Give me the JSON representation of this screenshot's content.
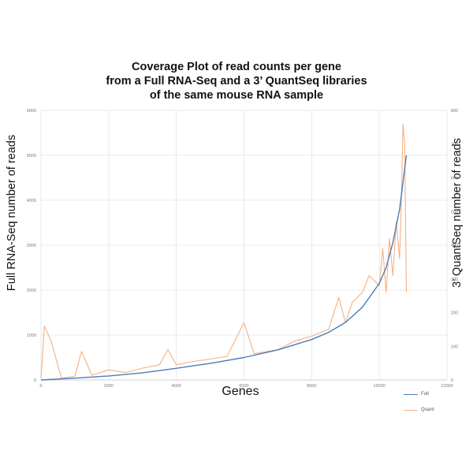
{
  "chart_data": {
    "type": "line",
    "title": [
      "Coverage Plot of read counts per gene",
      "from a Full RNA-Seq and a 3’ QuantSeq libraries",
      "of the same mouse RNA sample"
    ],
    "xlabel": "Genes",
    "ylabel_left": "Full RNA-Seq number of reads",
    "ylabel_right": "3’ QuantSeq number of reads",
    "xlim": [
      0,
      12000
    ],
    "xticks": [
      "0",
      "2000",
      "4000",
      "6000",
      "8000",
      "10000",
      "12000"
    ],
    "ylim_left": [
      0,
      6000
    ],
    "yticks_left": [
      "0",
      "1000",
      "2000",
      "3000",
      "4000",
      "5000",
      "6000"
    ],
    "ylim_right": [
      0,
      800
    ],
    "yticks_right": [
      "0",
      "100",
      "200",
      "300",
      "400",
      "500",
      "600",
      "700",
      "800"
    ],
    "grid": true,
    "legend_position": "bottom-right",
    "colors": {
      "Full": "#4a7ebb",
      "Quant": "#f4b183"
    },
    "series": [
      {
        "name": "Full",
        "axis": "left",
        "x": [
          0,
          1000,
          2000,
          3000,
          4000,
          5000,
          6000,
          7000,
          8000,
          8500,
          9000,
          9500,
          10000,
          10200,
          10400,
          10600,
          10800
        ],
        "values": [
          0,
          40,
          90,
          160,
          260,
          370,
          500,
          670,
          900,
          1060,
          1280,
          1620,
          2150,
          2500,
          3050,
          3800,
          5000
        ]
      },
      {
        "name": "Quant",
        "axis": "right",
        "x": [
          0,
          100,
          300,
          600,
          1000,
          1200,
          1500,
          2000,
          2500,
          3000,
          3500,
          3750,
          4000,
          4500,
          5000,
          5500,
          6000,
          6300,
          7000,
          7500,
          8000,
          8500,
          8800,
          9000,
          9200,
          9500,
          9700,
          10000,
          10100,
          10200,
          10300,
          10400,
          10500,
          10600,
          10650,
          10700,
          10750,
          10800
        ],
        "values": [
          5,
          160,
          115,
          6,
          10,
          85,
          14,
          30,
          22,
          35,
          45,
          90,
          45,
          55,
          62,
          70,
          170,
          78,
          90,
          115,
          130,
          150,
          245,
          170,
          230,
          260,
          310,
          280,
          390,
          260,
          420,
          310,
          470,
          360,
          530,
          760,
          700,
          260
        ]
      }
    ]
  }
}
